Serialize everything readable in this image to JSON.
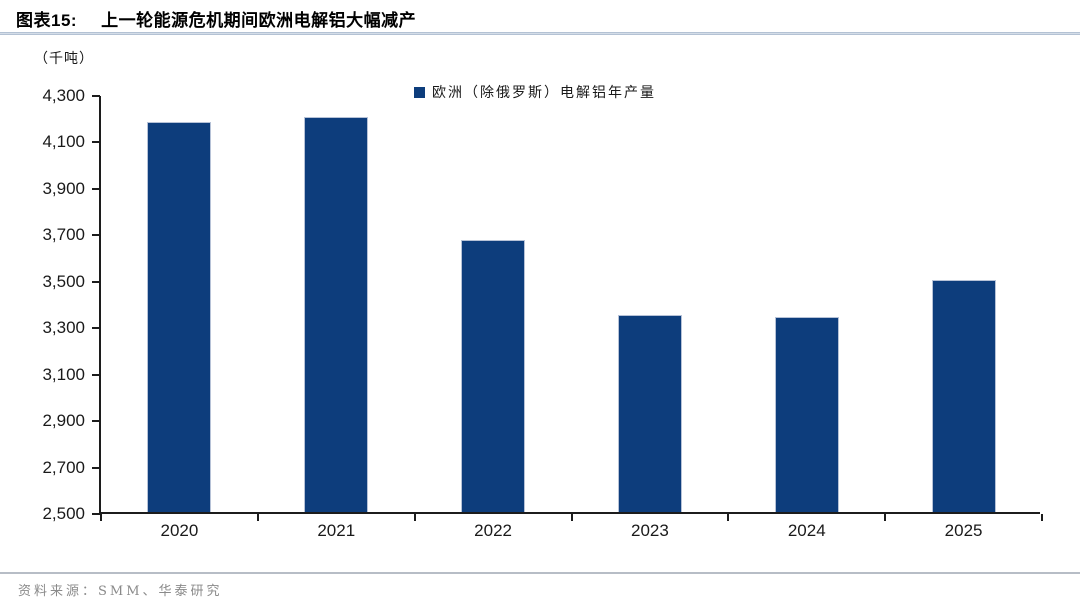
{
  "header": {
    "figure_label": "图表15:",
    "figure_title": "上一轮能源危机期间欧洲电解铝大幅减产"
  },
  "chart_data": {
    "type": "bar",
    "title": "上一轮能源危机期间欧洲电解铝大幅减产",
    "unit_label": "（千吨）",
    "legend": "欧洲（除俄罗斯）电解铝年产量",
    "legend_position": "top-center",
    "categories": [
      "2020",
      "2021",
      "2022",
      "2023",
      "2024",
      "2025"
    ],
    "values": [
      4180,
      4200,
      3670,
      3350,
      3340,
      3500
    ],
    "ylim": [
      2500,
      4300
    ],
    "ytick_step": 200,
    "ytick_labels": [
      "4,300",
      "4,100",
      "3,900",
      "3,700",
      "3,500",
      "3,300",
      "3,100",
      "2,900",
      "2,700",
      "2,500"
    ],
    "grid": false,
    "bar_color": "#0d3d7c",
    "axis_color": "#1c1c1c"
  },
  "footer": {
    "source": "资料来源：SMM、华泰研究"
  }
}
